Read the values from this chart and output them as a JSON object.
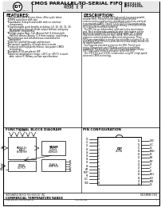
{
  "bg_color": "#f0f0f0",
  "page_bg": "#ffffff",
  "border_color": "#000000",
  "title_text": "CMOS PARALLEL-TO-SERIAL FIFO",
  "subtitle1": "2048  x  9",
  "subtitle2": "4096  x  9",
  "part1": "IDT72131",
  "part2": "IDT72131L",
  "header_logo_text": "IDT",
  "company_name": "Integrated Device Technology, Inc.",
  "features_title": "FEATURES:",
  "features": [
    "35ns parallel port access times, 40ns cycle times",
    "50MHz serial port shift rate",
    "Expandable in depth and width with no external\n  components",
    "Programmable word lengths including 1,8, 16, 18, 32, 36\n  bit using flow-through serial output without using any\n  additional components",
    "Multiple status flags: Full, Almost-Full (1-8 from full),\n  Half-Full, Almost-Empty (1-8 from empty), and Empty",
    "Asynchronous and simultaneous read and write\n  operations",
    "Dual-Port and fall-through architecture",
    "Retransmit capability in single device mode",
    "Produced with high-performance, low-power CMOS\n  technology",
    "Available in 28-pin plastic DIP",
    "Industrial temperature range (-40°C to +85°C) is avail-\n  able, select IC Military section specifications"
  ],
  "description_title": "DESCRIPTION:",
  "description_text": "The IDT72131 and 72131L are high speed, low power parallel-\nto-serial FIFOs. These FIFOs are ideally suited to serial\ncommunications applications, distributed controllers, and local\narea networks (LANs). The IDT72131/IDT72131L can be config-\nured with the IDT's parallel-to-serial shifting IDT72130/IDT7213\n0/L to provide serial data buffering.\n  The FIFO has an independent input port and a serial output\nport. Word and between parallel-to-serial data buffers can be\nbuilt using multiple IDT72130/IDT7213L chips. IDT's unique\nflag/count control selection logic (SEEA, SEE) selects which\nsequence controlled with no additional components. These\nFIFOs are expandable to directly shared widths including 8,16, 18,\nand 36 bits. Dual FIFOs in a same device allows empty connection\nfor depth expansion.\n  Four flags are provided to monitor the FIFO: The full and\nempty flags prevent any FIFO data overflow or underflow\nconditions. The almost-full (F/E) minimum and almost-empty\n(F/E) flags signal memory allocation within the FIFO.\n  The IDT72131 and 72131L is fabricated using IDT's high-speed\nadvanced CMOS technology.",
  "func_block_title": "FUNCTIONAL BLOCK DIAGRAM",
  "pin_config_title": "PIN CONFIGURATION",
  "footer_company": "INTEGRATED DEVICE TECHNOLOGY, INC.",
  "footer_temp": "COMMERCIAL TEMPERATURE RANGE",
  "footer_date": "DECEMBER 1993",
  "footer_doc": "IDT72131/L35P",
  "footer_page": "1"
}
